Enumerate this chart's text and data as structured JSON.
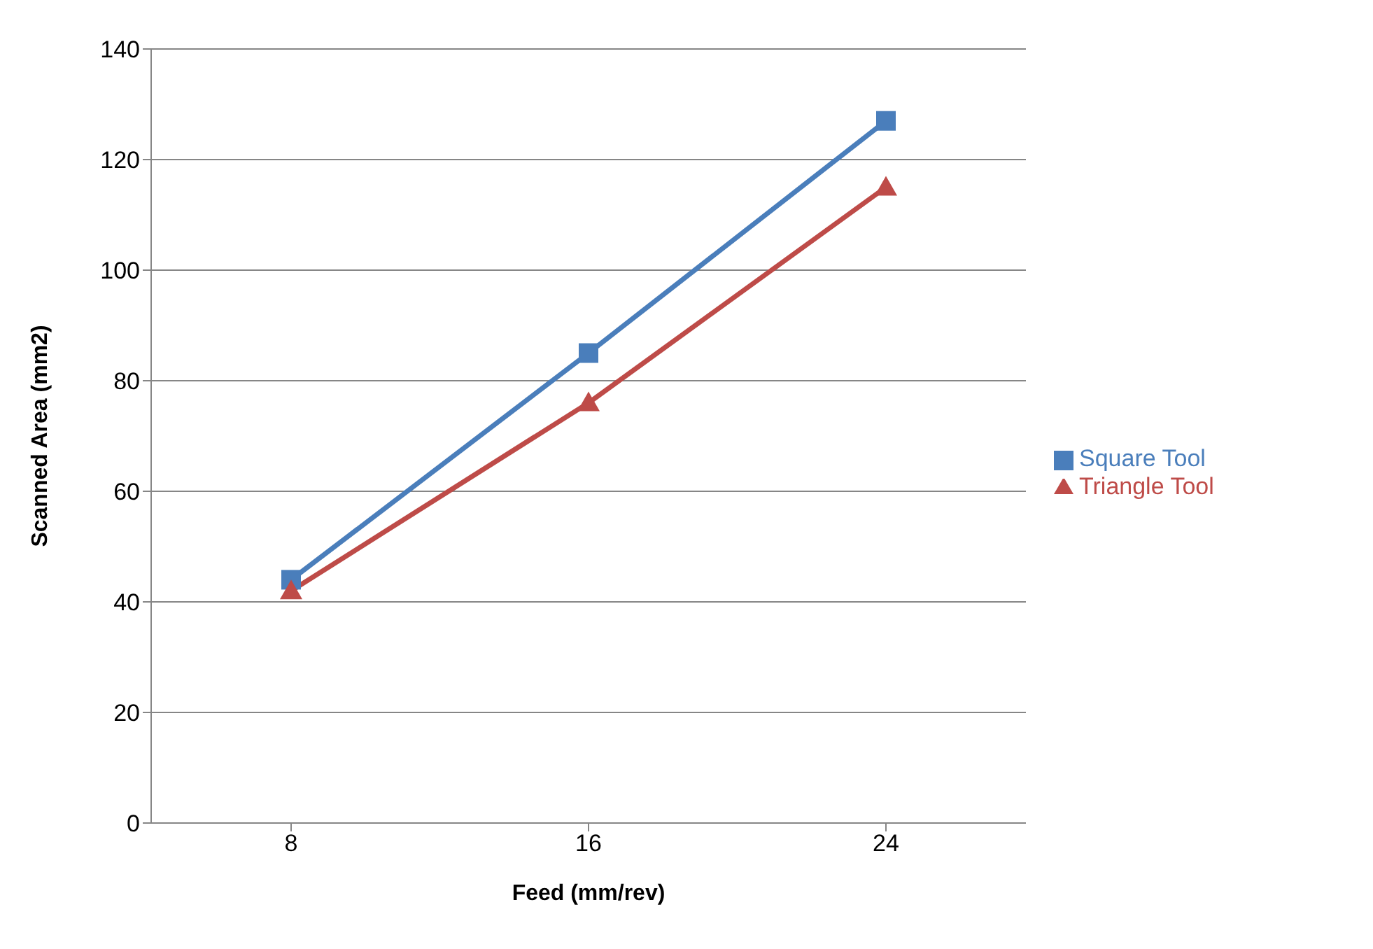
{
  "chart_data": {
    "type": "line",
    "xlabel": "Feed (mm/rev)",
    "ylabel": "Scanned Area (mm2)",
    "categories": [
      "8",
      "16",
      "24"
    ],
    "series": [
      {
        "name": "Square Tool",
        "color": "#4a7ebb",
        "marker": "square",
        "values": [
          44,
          85,
          127
        ]
      },
      {
        "name": "Triangle Tool",
        "color": "#be4b48",
        "marker": "triangle",
        "values": [
          42,
          76,
          115
        ]
      }
    ],
    "ylim": [
      0,
      140
    ],
    "yticks": [
      0,
      20,
      40,
      60,
      80,
      100,
      120,
      140
    ],
    "grid": "y",
    "legend": "right"
  }
}
